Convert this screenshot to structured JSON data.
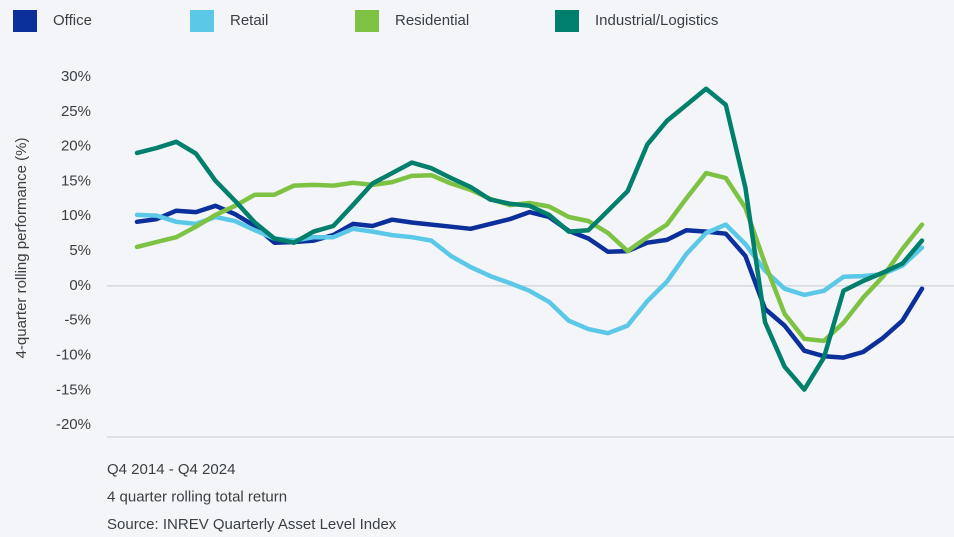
{
  "chart_data": {
    "type": "line",
    "y_label": "4-quarter rolling performance (%)",
    "notes": [
      "Q4 2014 - Q4 2024",
      "4 quarter rolling total return",
      "Source: INREV Quarterly Asset Level Index"
    ],
    "ylim": [
      -21.7,
      30
    ],
    "yticks": [
      {
        "value": 30,
        "label": "30%"
      },
      {
        "value": 25,
        "label": "25%"
      },
      {
        "value": 20,
        "label": "20%"
      },
      {
        "value": 15,
        "label": "15%"
      },
      {
        "value": 10,
        "label": "10%"
      },
      {
        "value": 5,
        "label": "5%"
      },
      {
        "value": 0,
        "label": "0%"
      },
      {
        "value": -5,
        "label": "-5%"
      },
      {
        "value": -10,
        "label": "-10%"
      },
      {
        "value": -15,
        "label": "-15%"
      },
      {
        "value": -20,
        "label": "-20%"
      }
    ],
    "series": [
      {
        "name": "Office",
        "color": "#0b2f9b",
        "values": [
          9.2,
          9.6,
          10.8,
          10.6,
          11.5,
          10.3,
          8.6,
          6.2,
          6.3,
          6.5,
          7.3,
          8.9,
          8.6,
          9.5,
          9.1,
          8.8,
          8.5,
          8.2,
          8.9,
          9.6,
          10.6,
          9.9,
          7.9,
          6.8,
          4.9,
          5.0,
          6.2,
          6.6,
          8.0,
          7.8,
          7.5,
          4.3,
          -3.3,
          -5.7,
          -9.3,
          -10.1,
          -10.3,
          -9.5,
          -7.5,
          -5.0,
          -0.4
        ]
      },
      {
        "name": "Retail",
        "color": "#5bc8e8",
        "values": [
          10.2,
          10.1,
          9.2,
          8.9,
          9.9,
          9.3,
          8.0,
          6.8,
          6.5,
          7.0,
          7.0,
          8.2,
          7.8,
          7.3,
          7.0,
          6.5,
          4.3,
          2.7,
          1.4,
          0.4,
          -0.7,
          -2.3,
          -5.0,
          -6.2,
          -6.8,
          -5.7,
          -2.2,
          0.6,
          4.6,
          7.6,
          8.8,
          6.0,
          2.2,
          -0.4,
          -1.3,
          -0.7,
          1.3,
          1.4,
          1.7,
          2.9,
          5.5
        ]
      },
      {
        "name": "Residential",
        "color": "#7dc243",
        "values": [
          5.6,
          6.3,
          7.0,
          8.5,
          10.2,
          11.5,
          13.1,
          13.1,
          14.4,
          14.5,
          14.4,
          14.8,
          14.5,
          14.9,
          15.8,
          15.9,
          14.7,
          13.8,
          12.5,
          11.6,
          11.9,
          11.4,
          9.9,
          9.3,
          7.6,
          5.0,
          7.0,
          8.8,
          12.6,
          16.2,
          15.5,
          11.2,
          3.2,
          -4.0,
          -7.6,
          -7.9,
          -5.3,
          -1.7,
          1.3,
          5.3,
          8.8
        ]
      },
      {
        "name": "Industrial/Logistics",
        "color": "#007f6c",
        "values": [
          19.1,
          19.8,
          20.7,
          19.0,
          15.1,
          12.2,
          9.1,
          6.8,
          6.2,
          7.8,
          8.6,
          11.6,
          14.7,
          16.2,
          17.7,
          16.9,
          15.5,
          14.2,
          12.4,
          11.8,
          11.5,
          10.2,
          7.8,
          8.0,
          10.8,
          13.6,
          20.3,
          23.7,
          26.0,
          28.3,
          26.0,
          14.1,
          -5.2,
          -11.6,
          -14.9,
          -10.3,
          -0.7,
          0.7,
          1.9,
          3.2,
          6.5
        ]
      }
    ]
  }
}
